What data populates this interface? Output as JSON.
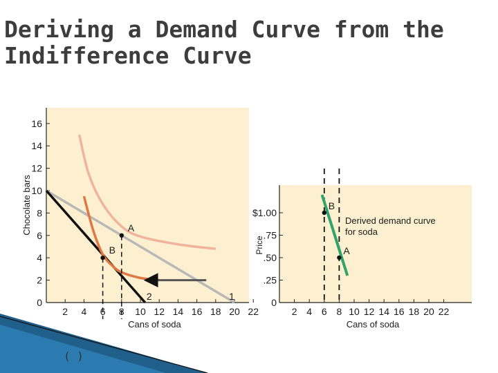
{
  "slide": {
    "title_line1": "Deriving a Demand Curve from the",
    "title_line2": "Indifference Curve",
    "bottom_label": "( )"
  },
  "colors": {
    "panel_bg": "#fdf0d0",
    "budget_line_1": "#b8b8b8",
    "budget_line_2": "#111111",
    "indifference_curve_high": "#f0b49c",
    "indifference_curve_low": "#e07844",
    "demand_curve": "#2fa36b",
    "accent_arrow": "#555555"
  },
  "chart_data": [
    {
      "type": "line",
      "xlabel": "Cans of soda",
      "ylabel": "Chocolate bars",
      "xlim": [
        0,
        24
      ],
      "ylim": [
        0,
        16
      ],
      "x_ticks": [
        "2",
        "4",
        "6",
        "8",
        "10",
        "12",
        "14",
        "16",
        "18",
        "20",
        "22"
      ],
      "y_ticks": [
        "0",
        "2",
        "4",
        "6",
        "8",
        "10",
        "12",
        "14",
        "16"
      ],
      "budget_lines": [
        {
          "label": "1",
          "color": "#b8b8b8",
          "points": [
            [
              0,
              10
            ],
            [
              20,
              0
            ]
          ]
        },
        {
          "label": "2",
          "color": "#111111",
          "points": [
            [
              0,
              10
            ],
            [
              10.5,
              0
            ]
          ]
        }
      ],
      "indifference_curves": [
        {
          "color": "#f0b49c",
          "points": [
            [
              3.5,
              15
            ],
            [
              4.5,
              11.5
            ],
            [
              6,
              8.8
            ],
            [
              8,
              6.8
            ],
            [
              10,
              5.9
            ],
            [
              14,
              5.2
            ],
            [
              18,
              4.8
            ]
          ]
        },
        {
          "color": "#e07844",
          "points": [
            [
              4,
              9.5
            ],
            [
              5,
              6.4
            ],
            [
              6,
              4.3
            ],
            [
              7,
              3.3
            ],
            [
              8,
              2.7
            ],
            [
              10,
              2.2
            ],
            [
              12,
              2.0
            ]
          ]
        }
      ],
      "points": [
        {
          "label": "A",
          "x": 8,
          "y": 6
        },
        {
          "label": "B",
          "x": 6,
          "y": 4
        }
      ],
      "shift_arrow": {
        "from": [
          17,
          2
        ],
        "to": [
          10.5,
          2
        ]
      }
    },
    {
      "type": "line",
      "xlabel": "Cans of soda",
      "ylabel": "Price",
      "xlim": [
        0,
        24
      ],
      "ylim": [
        0,
        1.25
      ],
      "x_ticks": [
        "2",
        "4",
        "6",
        "8",
        "10",
        "12",
        "14",
        "16",
        "18",
        "20",
        "22"
      ],
      "y_ticks": [
        "0",
        ".25",
        ".50",
        ".75",
        "$1.00"
      ],
      "y_tick_values": [
        0,
        0.25,
        0.5,
        0.75,
        1.0
      ],
      "series": [
        {
          "color": "#2fa36b",
          "points": [
            [
              5.7,
              1.2
            ],
            [
              9.1,
              0.3
            ]
          ]
        }
      ],
      "annotation": "Derived demand curve for soda",
      "points": [
        {
          "label": "B",
          "x": 6,
          "y": 1.0
        },
        {
          "label": "A",
          "x": 8,
          "y": 0.5
        }
      ]
    }
  ]
}
